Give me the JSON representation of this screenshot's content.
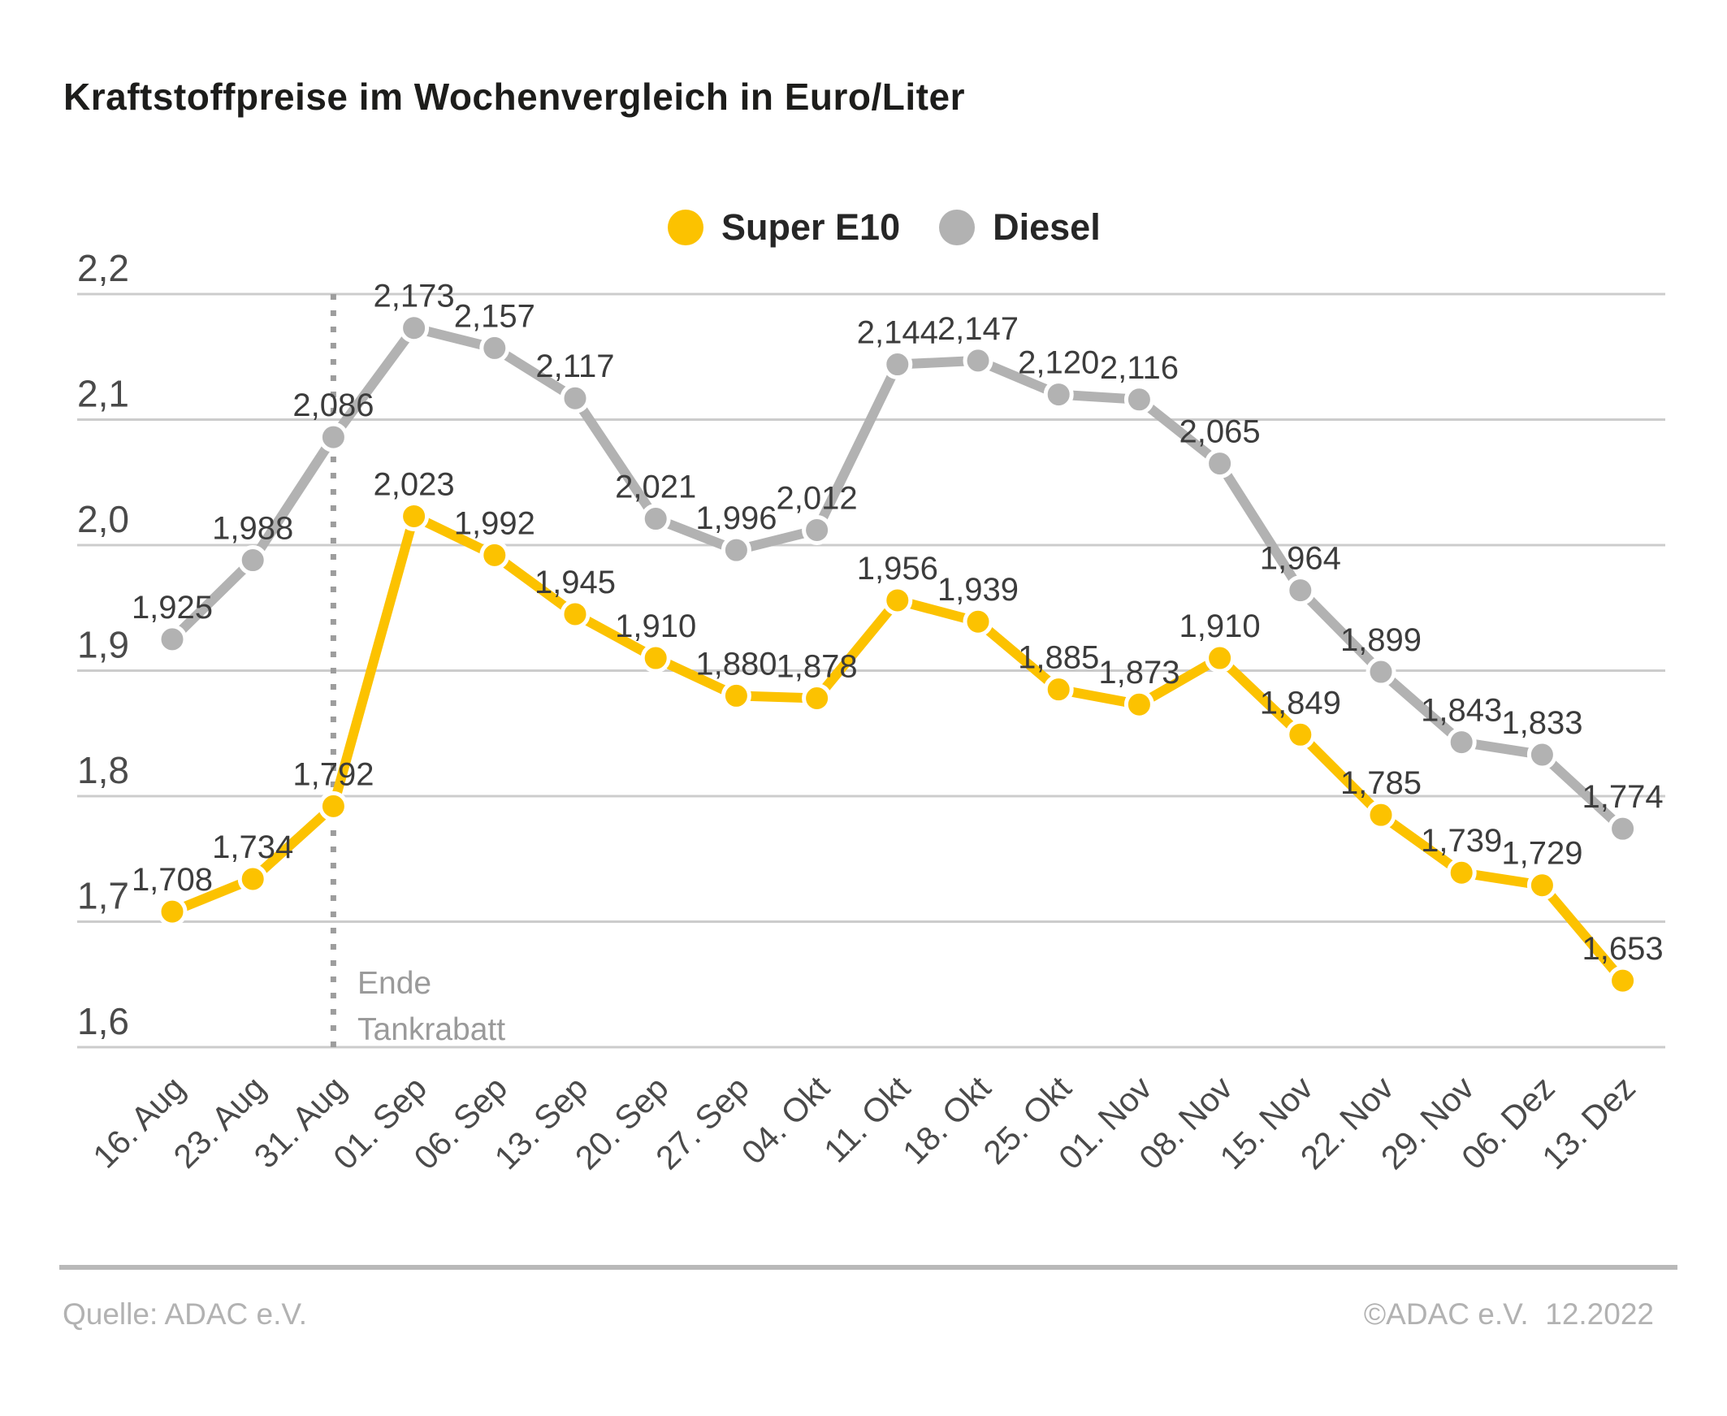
{
  "title": "Kraftstoffpreise im Wochenvergleich in Euro/Liter",
  "legend": {
    "items": [
      {
        "label": "Super E10",
        "color": "#fcc200"
      },
      {
        "label": "Diesel",
        "color": "#b2b2b2"
      }
    ]
  },
  "annotation": {
    "line1": "Ende",
    "line2": "Tankrabatt"
  },
  "footer": {
    "source": "Quelle: ADAC e.V.",
    "copyright": "©ADAC e.V.  12.2022"
  },
  "chart_data": {
    "type": "line",
    "title": "Kraftstoffpreise im Wochenvergleich in Euro/Liter",
    "x": [
      "16. Aug",
      "23. Aug",
      "31. Aug",
      "01. Sep",
      "06. Sep",
      "13. Sep",
      "20. Sep",
      "27. Sep",
      "04. Okt",
      "11. Okt",
      "18. Okt",
      "25. Okt",
      "01. Nov",
      "08. Nov",
      "15. Nov",
      "22. Nov",
      "29. Nov",
      "06. Dez",
      "13. Dez"
    ],
    "series": [
      {
        "name": "Super E10",
        "color": "#fcc200",
        "values": [
          1.708,
          1.734,
          1.792,
          2.023,
          1.992,
          1.945,
          1.91,
          1.88,
          1.878,
          1.956,
          1.939,
          1.885,
          1.873,
          1.91,
          1.849,
          1.785,
          1.739,
          1.729,
          1.653
        ],
        "labels": [
          "1,708",
          "1,734",
          "1,792",
          "2,023",
          "1,992",
          "1,945",
          "1,910",
          "1,880",
          "1,878",
          "1,956",
          "1,939",
          "1,885",
          "1,873",
          "1,910",
          "1,849",
          "1,785",
          "1,739",
          "1,729",
          "1,653"
        ]
      },
      {
        "name": "Diesel",
        "color": "#b2b2b2",
        "values": [
          1.925,
          1.988,
          2.086,
          2.173,
          2.157,
          2.117,
          2.021,
          1.996,
          2.012,
          2.144,
          2.147,
          2.12,
          2.116,
          2.065,
          1.964,
          1.899,
          1.843,
          1.833,
          1.774
        ],
        "labels": [
          "1,925",
          "1,988",
          "2,086",
          "2,173",
          "2,157",
          "2,117",
          "2,021",
          "1,996",
          "2,012",
          "2,144",
          "2,147",
          "2,120",
          "2,116",
          "2,065",
          "1,964",
          "1,899",
          "1,843",
          "1,833",
          "1,774"
        ]
      }
    ],
    "ylabel": "Euro/Liter",
    "ylim": [
      1.6,
      2.2
    ],
    "y_ticks": [
      {
        "v": 2.2,
        "label": "2,2"
      },
      {
        "v": 2.1,
        "label": "2,1"
      },
      {
        "v": 2.0,
        "label": "2,0"
      },
      {
        "v": 1.9,
        "label": "1,9"
      },
      {
        "v": 1.8,
        "label": "1,8"
      },
      {
        "v": 1.7,
        "label": "1,7"
      },
      {
        "v": 1.6,
        "label": "1,6"
      }
    ],
    "grid": true,
    "legend_position": "top-center",
    "vline": {
      "x_index": 2,
      "label": "Ende Tankrabatt",
      "style": "dotted"
    },
    "colors": {
      "grid": "#cccccc",
      "axis_text": "#4a4a4a",
      "data_label_text": "#3c3c3c",
      "vline": "#9d9d9d",
      "marker_halo": "#ffffff"
    }
  }
}
